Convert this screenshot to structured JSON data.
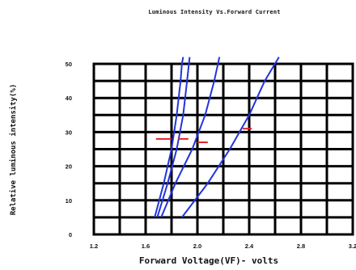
{
  "chart_data": {
    "type": "line",
    "title": "Luminous Intensity Vs.Forward Current",
    "xlabel": "Forward Voltage(VF)- volts",
    "ylabel": "Relative luminous intensity(%)",
    "xlim": [
      1.2,
      3.2
    ],
    "ylim": [
      0,
      50
    ],
    "x_ticks": [
      "1.2",
      "1.6",
      "2.0",
      "2.4",
      "2.8",
      "3.2"
    ],
    "y_ticks": [
      "0",
      "10",
      "20",
      "30",
      "40",
      "50"
    ],
    "grid": true,
    "line_color": "#2233dd",
    "marker_color": "#dd2222",
    "series": [
      {
        "x": [
          1.67,
          1.74,
          1.8,
          1.84,
          1.87,
          1.88,
          1.89
        ],
        "y": [
          5,
          15,
          25,
          35,
          45,
          50,
          52
        ]
      },
      {
        "x": [
          1.69,
          1.77,
          1.84,
          1.89,
          1.92,
          1.94
        ],
        "y": [
          5,
          15,
          25,
          35,
          45,
          52
        ]
      },
      {
        "x": [
          1.72,
          1.83,
          1.96,
          2.06,
          2.13,
          2.17
        ],
        "y": [
          5,
          15,
          25,
          35,
          45,
          52
        ]
      },
      {
        "x": [
          1.88,
          2.08,
          2.25,
          2.4,
          2.52,
          2.63
        ],
        "y": [
          5,
          15,
          25,
          35,
          45,
          52
        ]
      }
    ],
    "markers": [
      {
        "x1": 1.68,
        "x2": 1.8,
        "y": 28
      },
      {
        "x1": 1.85,
        "x2": 1.93,
        "y": 28
      },
      {
        "x1": 2.0,
        "x2": 2.08,
        "y": 27
      },
      {
        "x1": 2.35,
        "x2": 2.42,
        "y": 31
      }
    ]
  }
}
